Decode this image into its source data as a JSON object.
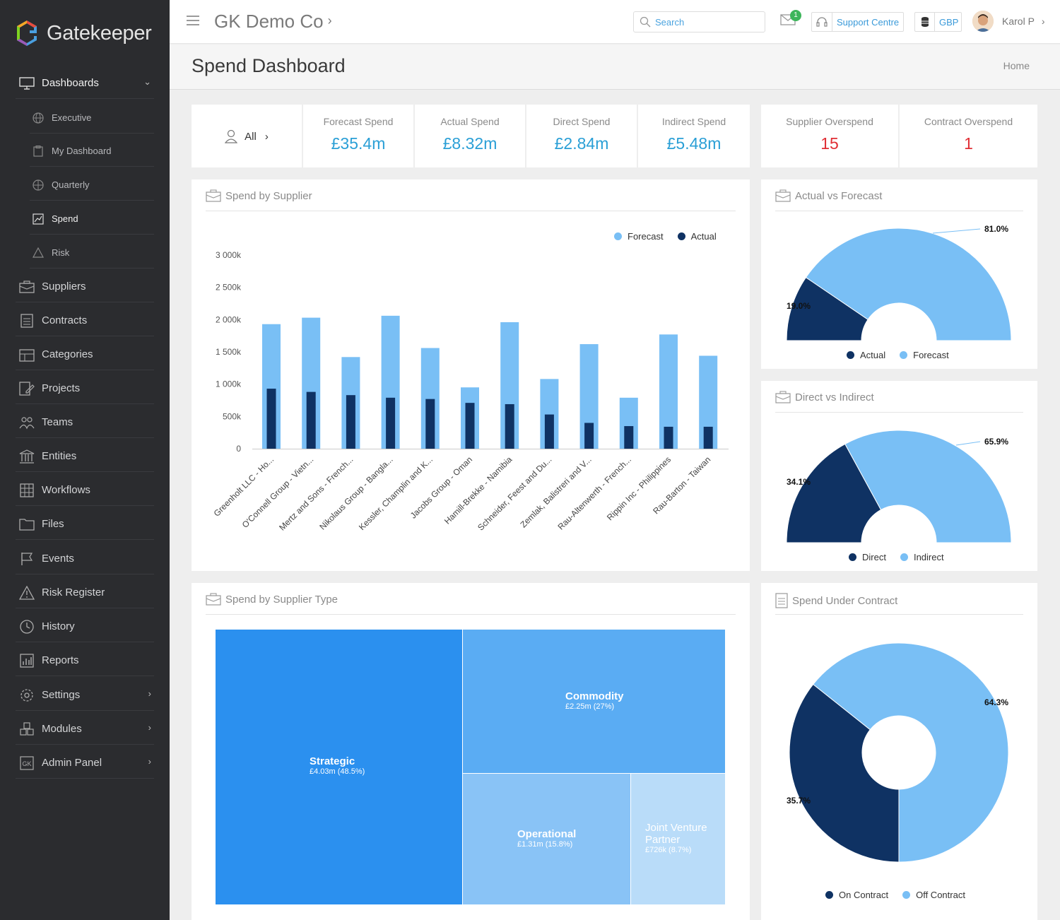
{
  "app": {
    "name": "Gatekeeper",
    "company": "GK Demo Co"
  },
  "topbar": {
    "search_placeholder": "Search",
    "mail_badge": "1",
    "support_label": "Support Centre",
    "currency": "GBP",
    "user_name": "Karol P"
  },
  "page": {
    "title": "Spend Dashboard",
    "breadcrumb_home": "Home"
  },
  "sidebar": {
    "dashboards": "Dashboards",
    "sub": [
      "Executive",
      "My Dashboard",
      "Quarterly",
      "Spend",
      "Risk"
    ],
    "items": [
      "Suppliers",
      "Contracts",
      "Categories",
      "Projects",
      "Teams",
      "Entities",
      "Workflows",
      "Files",
      "Events",
      "Risk Register",
      "History",
      "Reports",
      "Settings",
      "Modules",
      "Admin Panel"
    ]
  },
  "filter": {
    "label": "All"
  },
  "kpis": [
    {
      "label": "Forecast Spend",
      "value": "£35.4m"
    },
    {
      "label": "Actual Spend",
      "value": "£8.32m"
    },
    {
      "label": "Direct Spend",
      "value": "£2.84m"
    },
    {
      "label": "Indirect Spend",
      "value": "£5.48m"
    },
    {
      "label": "Supplier Overspend",
      "value": "15"
    },
    {
      "label": "Contract Overspend",
      "value": "1"
    }
  ],
  "colors": {
    "forecast": "#79bff5",
    "actual": "#0f3263",
    "accent": "#2a9fd6",
    "alert": "#e02e34"
  },
  "cards": {
    "spend_by_supplier": "Spend by Supplier",
    "actual_vs_forecast": "Actual vs Forecast",
    "direct_vs_indirect": "Direct vs Indirect",
    "spend_by_type": "Spend by Supplier Type",
    "spend_under_contract": "Spend Under Contract"
  },
  "chart_data": [
    {
      "type": "bar",
      "title": "Spend by Supplier",
      "categories": [
        "Greenholt LLC - Ho...",
        "O'Connell Group - Vietn...",
        "Mertz and Sons - French...",
        "Nikolaus Group - Bangla...",
        "Kessler, Champlin and K...",
        "Jacobs Group - Oman",
        "Hamill-Brekke - Namibia",
        "Schneider, Feest and Du...",
        "Zemlak, Balistreri and V...",
        "Rau-Altenwerth - French...",
        "Rippin Inc - Philippines",
        "Rau-Barton - Taiwan"
      ],
      "series": [
        {
          "name": "Forecast",
          "values": [
            1930,
            2030,
            1420,
            2060,
            1560,
            950,
            1960,
            1080,
            1620,
            790,
            1770,
            1440
          ]
        },
        {
          "name": "Actual",
          "values": [
            930,
            880,
            830,
            790,
            770,
            710,
            690,
            530,
            400,
            350,
            340,
            340
          ]
        }
      ],
      "yticks": [
        "0",
        "500k",
        "1 000k",
        "1 500k",
        "2 000k",
        "2 500k",
        "3 000k"
      ],
      "ylim": [
        0,
        3000
      ],
      "legend": "top-right"
    },
    {
      "type": "pie",
      "title": "Actual vs Forecast",
      "labels": [
        "Actual",
        "Forecast"
      ],
      "values": [
        19.0,
        81.0
      ],
      "value_labels": [
        "19.0%",
        "81.0%"
      ],
      "legend": "bottom"
    },
    {
      "type": "pie",
      "title": "Direct vs Indirect",
      "labels": [
        "Direct",
        "Indirect"
      ],
      "values": [
        34.1,
        65.9
      ],
      "value_labels": [
        "34.1%",
        "65.9%"
      ],
      "legend": "bottom"
    },
    {
      "type": "treemap",
      "title": "Spend by Supplier Type",
      "items": [
        {
          "name": "Strategic",
          "value": "£4.03m (48.5%)",
          "share": 48.5
        },
        {
          "name": "Commodity",
          "value": "£2.25m (27%)",
          "share": 27
        },
        {
          "name": "Operational",
          "value": "£1.31m (15.8%)",
          "share": 15.8
        },
        {
          "name": "Joint Venture Partner",
          "value": "£726k (8.7%)",
          "share": 8.7
        }
      ]
    },
    {
      "type": "pie",
      "title": "Spend Under Contract",
      "labels": [
        "On Contract",
        "Off Contract"
      ],
      "values": [
        35.7,
        64.3
      ],
      "value_labels": [
        "35.7%",
        "64.3%"
      ],
      "legend": "bottom"
    }
  ]
}
